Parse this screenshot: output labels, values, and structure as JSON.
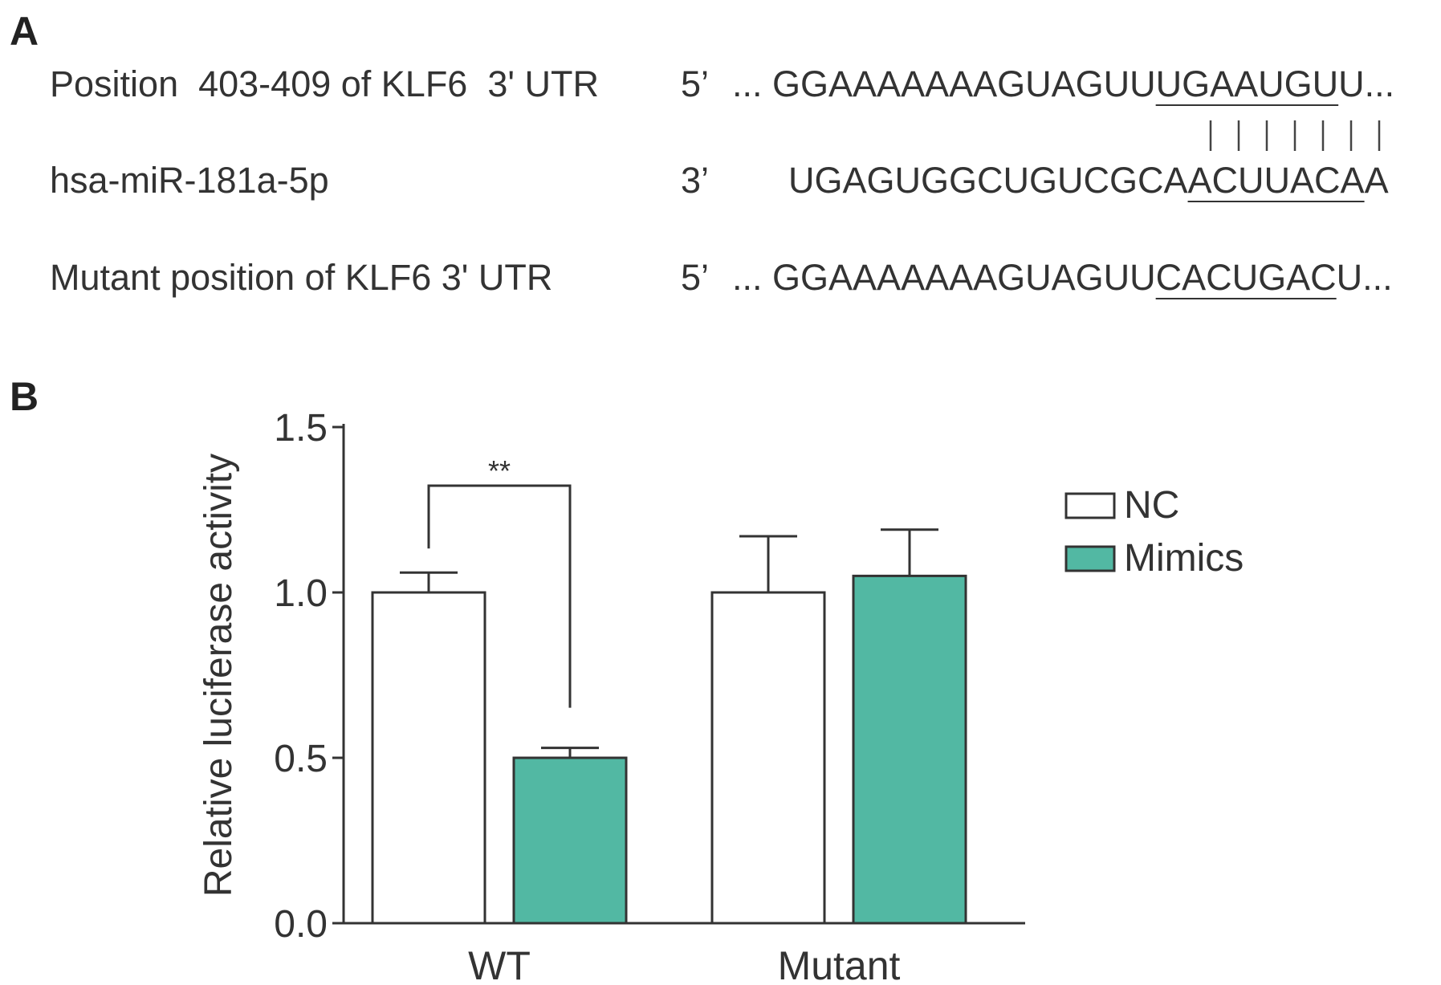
{
  "panel_a": {
    "label": "A",
    "rows": [
      {
        "name": "Position  403-409 of KLF6  3' UTR",
        "end": "5’",
        "prefix": "... ",
        "pre": "GGAAAAAAAGUAGUU",
        "site": "UGAAUGU",
        "post": "U..."
      },
      {
        "name": "hsa-miR-181a-5p",
        "end": "3’",
        "prefix": "",
        "pre": "UGAGUGGCUGUCGCA",
        "site": "ACUUACA",
        "post": "A"
      },
      {
        "name": "Mutant position of KLF6 3' UTR",
        "end": "5’",
        "prefix": "... ",
        "pre": "GGAAAAAAAGUAGUU",
        "site": "CACUGAC",
        "post": "U..."
      }
    ],
    "pairing_marks": 7
  },
  "panel_b": {
    "label": "B"
  },
  "chart_data": {
    "type": "bar",
    "title": "",
    "ylabel": "Relative luciferase activity",
    "xlabel": "",
    "categories": [
      "WT",
      "Mutant"
    ],
    "ylim": [
      0,
      1.5
    ],
    "yticks": [
      "0.0",
      "0.5",
      "1.0",
      "1.5"
    ],
    "series": [
      {
        "name": "NC",
        "values": [
          1.0,
          1.0
        ],
        "errors": [
          0.06,
          0.17
        ],
        "color": "#ffffff"
      },
      {
        "name": "Mimics",
        "values": [
          0.5,
          1.05
        ],
        "errors": [
          0.03,
          0.14
        ],
        "color": "#52b8a3"
      }
    ],
    "legend_position": "top-right",
    "annotations": [
      {
        "text": "**",
        "category": "WT"
      }
    ]
  }
}
